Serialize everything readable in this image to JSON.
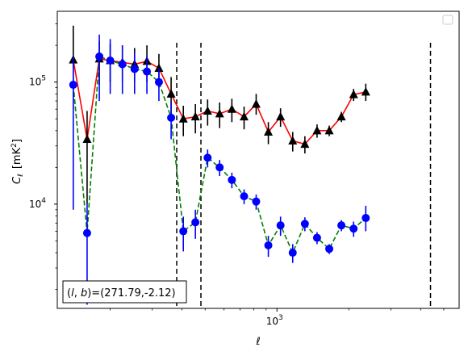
{
  "chart_data": {
    "type": "line",
    "xlabel": "ℓ",
    "ylabel": "C",
    "ylabel_sub": "ℓ",
    "ylabel_unit": "[mK",
    "ylabel_unit_sup": "2",
    "ylabel_unit_end": "]",
    "x_scale": "log",
    "y_scale": "log",
    "xlim": [
      120,
      5800
    ],
    "ylim": [
      1400,
      380000
    ],
    "x_major_ticks": [
      {
        "value": 1000,
        "base": "10",
        "exp": "3"
      }
    ],
    "y_major_ticks": [
      {
        "value": 10000,
        "base": "10",
        "exp": "4"
      },
      {
        "value": 100000,
        "base": "10",
        "exp": "5"
      }
    ],
    "annotation": {
      "prefix": "(",
      "l": "l",
      "comma": ", ",
      "b": "b",
      "suffix": ")=(271.79,-2.12)"
    },
    "legend": {
      "position": "top-right",
      "entries": []
    },
    "vlines": [
      380,
      480,
      4400
    ],
    "series": [
      {
        "color": "#ff0000",
        "marker_color": "#000000",
        "marker": "triangle",
        "linestyle": "solid",
        "points": [
          {
            "x": 140,
            "y": 152000,
            "lo": 60000,
            "hi": 290000
          },
          {
            "x": 160,
            "y": 34000,
            "lo": 10000,
            "hi": 58000
          },
          {
            "x": 180,
            "y": 155000,
            "lo": 95000,
            "hi": 215000
          },
          {
            "x": 200,
            "y": 150000,
            "lo": 100000,
            "hi": 205000
          },
          {
            "x": 225,
            "y": 145000,
            "lo": 100000,
            "hi": 200000
          },
          {
            "x": 253,
            "y": 140000,
            "lo": 100000,
            "hi": 190000
          },
          {
            "x": 285,
            "y": 148000,
            "lo": 100000,
            "hi": 200000
          },
          {
            "x": 320,
            "y": 130000,
            "lo": 90000,
            "hi": 170000
          },
          {
            "x": 360,
            "y": 80000,
            "lo": 50000,
            "hi": 110000
          },
          {
            "x": 405,
            "y": 50000,
            "lo": 36000,
            "hi": 64000
          },
          {
            "x": 455,
            "y": 52000,
            "lo": 38000,
            "hi": 66000
          },
          {
            "x": 512,
            "y": 58000,
            "lo": 44000,
            "hi": 72000
          },
          {
            "x": 575,
            "y": 55000,
            "lo": 42000,
            "hi": 68000
          },
          {
            "x": 647,
            "y": 60000,
            "lo": 47000,
            "hi": 73000
          },
          {
            "x": 728,
            "y": 52000,
            "lo": 41000,
            "hi": 63000
          },
          {
            "x": 818,
            "y": 66000,
            "lo": 54000,
            "hi": 80000
          },
          {
            "x": 920,
            "y": 39000,
            "lo": 31000,
            "hi": 47000
          },
          {
            "x": 1035,
            "y": 52000,
            "lo": 43000,
            "hi": 61000
          },
          {
            "x": 1164,
            "y": 33000,
            "lo": 27000,
            "hi": 39000
          },
          {
            "x": 1309,
            "y": 31000,
            "lo": 26000,
            "hi": 36000
          },
          {
            "x": 1472,
            "y": 40000,
            "lo": 35000,
            "hi": 45000
          },
          {
            "x": 1656,
            "y": 40000,
            "lo": 36000,
            "hi": 44000
          },
          {
            "x": 1862,
            "y": 52000,
            "lo": 47000,
            "hi": 57000
          },
          {
            "x": 2095,
            "y": 79000,
            "lo": 70000,
            "hi": 88000
          },
          {
            "x": 2356,
            "y": 83000,
            "lo": 70000,
            "hi": 97000
          }
        ]
      },
      {
        "color": "#008000",
        "marker_color": "#0000ff",
        "marker": "circle",
        "linestyle": "dashed",
        "points": [
          {
            "x": 140,
            "y": 95000,
            "lo": 9000,
            "hi": 160000
          },
          {
            "x": 160,
            "y": 5800,
            "lo": 1500,
            "hi": 10000
          },
          {
            "x": 180,
            "y": 162000,
            "lo": 70000,
            "hi": 245000
          },
          {
            "x": 200,
            "y": 150000,
            "lo": 80000,
            "hi": 225000
          },
          {
            "x": 225,
            "y": 140000,
            "lo": 80000,
            "hi": 200000
          },
          {
            "x": 253,
            "y": 128000,
            "lo": 80000,
            "hi": 175000
          },
          {
            "x": 285,
            "y": 122000,
            "lo": 80000,
            "hi": 165000
          },
          {
            "x": 320,
            "y": 100000,
            "lo": 70000,
            "hi": 130000
          },
          {
            "x": 360,
            "y": 51000,
            "lo": 34000,
            "hi": 68000
          },
          {
            "x": 405,
            "y": 6000,
            "lo": 4100,
            "hi": 7900
          },
          {
            "x": 455,
            "y": 7100,
            "lo": 5200,
            "hi": 9000
          },
          {
            "x": 512,
            "y": 24000,
            "lo": 20000,
            "hi": 28000
          },
          {
            "x": 575,
            "y": 20000,
            "lo": 17000,
            "hi": 23000
          },
          {
            "x": 647,
            "y": 15800,
            "lo": 13500,
            "hi": 18100
          },
          {
            "x": 728,
            "y": 11600,
            "lo": 10000,
            "hi": 13200
          },
          {
            "x": 818,
            "y": 10500,
            "lo": 9000,
            "hi": 12000
          },
          {
            "x": 920,
            "y": 4600,
            "lo": 3700,
            "hi": 5500
          },
          {
            "x": 1035,
            "y": 6700,
            "lo": 5500,
            "hi": 7900
          },
          {
            "x": 1164,
            "y": 4000,
            "lo": 3300,
            "hi": 4700
          },
          {
            "x": 1309,
            "y": 6900,
            "lo": 6000,
            "hi": 7800
          },
          {
            "x": 1472,
            "y": 5300,
            "lo": 4700,
            "hi": 5900
          },
          {
            "x": 1656,
            "y": 4300,
            "lo": 3900,
            "hi": 4700
          },
          {
            "x": 1862,
            "y": 6700,
            "lo": 6000,
            "hi": 7400
          },
          {
            "x": 2095,
            "y": 6300,
            "lo": 5400,
            "hi": 7200
          },
          {
            "x": 2356,
            "y": 7700,
            "lo": 6000,
            "hi": 9700
          }
        ]
      }
    ]
  }
}
